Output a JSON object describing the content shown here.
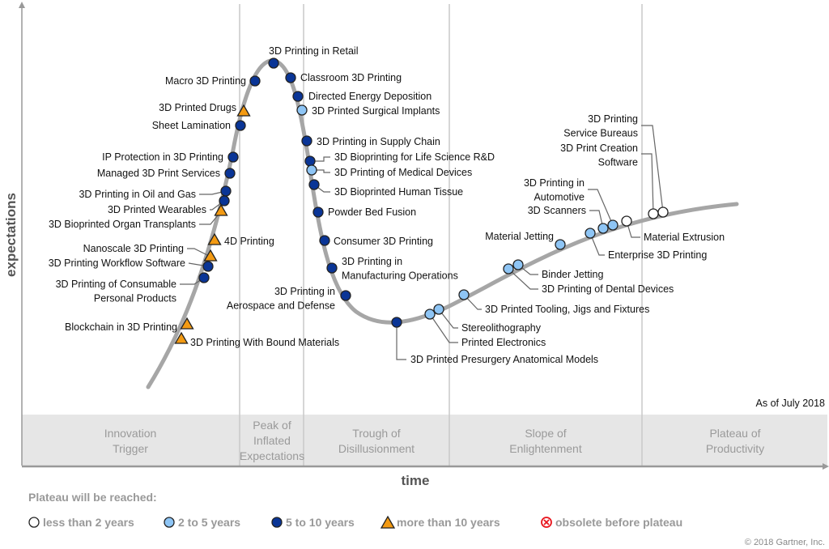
{
  "axes": {
    "y_label": "expectations",
    "x_label": "time"
  },
  "as_of": "As of July 2018",
  "phases": [
    {
      "lines": [
        "Innovation",
        "Trigger"
      ]
    },
    {
      "lines": [
        "Peak of",
        "Inflated",
        "Expectations"
      ]
    },
    {
      "lines": [
        "Trough of",
        "Disillusionment"
      ]
    },
    {
      "lines": [
        "Slope of",
        "Enlightenment"
      ]
    },
    {
      "lines": [
        "Plateau of",
        "Productivity"
      ]
    }
  ],
  "legend": {
    "title": "Plateau will be reached:",
    "items": [
      {
        "key": "lt2",
        "label": "less than 2 years",
        "icon": "white-circle-icon",
        "color": "#ffffff"
      },
      {
        "key": "2to5",
        "label": "2 to 5 years",
        "icon": "light-blue-circle-icon",
        "color": "#8ec5f5"
      },
      {
        "key": "5to10",
        "label": "5 to 10 years",
        "icon": "dark-blue-circle-icon",
        "color": "#0a3596"
      },
      {
        "key": "gt10",
        "label": "more than 10 years",
        "icon": "orange-triangle-icon",
        "color": "#f39a12"
      },
      {
        "key": "obsolete",
        "label": "obsolete before plateau",
        "icon": "red-crossed-circle-icon",
        "color": "#e8141c"
      }
    ]
  },
  "copyright": "© 2018 Gartner, Inc.",
  "technologies": [
    {
      "name": "3D Printing in Retail",
      "plateau": "5to10"
    },
    {
      "name": "Macro 3D Printing",
      "plateau": "5to10"
    },
    {
      "name": "Classroom 3D Printing",
      "plateau": "5to10"
    },
    {
      "name": "3D Printed Drugs",
      "plateau": "gt10"
    },
    {
      "name": "Directed Energy Deposition",
      "plateau": "5to10"
    },
    {
      "name": "3D Printed Surgical Implants",
      "plateau": "2to5"
    },
    {
      "name": "Sheet Lamination",
      "plateau": "5to10"
    },
    {
      "name": "3D Printing in Supply Chain",
      "plateau": "5to10"
    },
    {
      "name": "IP Protection in 3D Printing",
      "plateau": "5to10"
    },
    {
      "name": "3D Bioprinting for Life Science R&D",
      "plateau": "5to10"
    },
    {
      "name": "3D Printing of Medical Devices",
      "plateau": "2to5"
    },
    {
      "name": "Managed 3D Print Services",
      "plateau": "5to10"
    },
    {
      "name": "3D Bioprinted Human Tissue",
      "plateau": "5to10"
    },
    {
      "name": "3D Printing in Oil and Gas",
      "plateau": "5to10"
    },
    {
      "name": "3D Printed Wearables",
      "plateau": "5to10"
    },
    {
      "name": "3D Bioprinted Organ Transplants",
      "plateau": "gt10"
    },
    {
      "name": "Powder Bed Fusion",
      "plateau": "5to10"
    },
    {
      "name": "4D Printing",
      "plateau": "gt10"
    },
    {
      "name": "Consumer 3D Printing",
      "plateau": "5to10"
    },
    {
      "name": "Nanoscale 3D Printing",
      "plateau": "gt10"
    },
    {
      "name": "3D Printing Workflow Software",
      "plateau": "5to10"
    },
    {
      "name": "3D Printing in Manufacturing Operations",
      "lines": [
        "3D Printing in",
        "Manufacturing Operations"
      ],
      "plateau": "5to10"
    },
    {
      "name": "3D Printing of Consumable Personal Products",
      "lines": [
        "3D Printing of Consumable",
        "Personal Products"
      ],
      "plateau": "5to10"
    },
    {
      "name": "3D Printing in Aerospace and Defense",
      "lines": [
        "3D Printing in",
        "Aerospace and Defense"
      ],
      "plateau": "5to10"
    },
    {
      "name": "Blockchain in 3D Printing",
      "plateau": "gt10"
    },
    {
      "name": "3D Printing With Bound Materials",
      "plateau": "gt10"
    },
    {
      "name": "3D Printed Presurgery Anatomical Models",
      "plateau": "5to10"
    },
    {
      "name": "Stereolithography",
      "plateau": "2to5"
    },
    {
      "name": "Printed Electronics",
      "plateau": "2to5"
    },
    {
      "name": "3D Printed Tooling, Jigs and Fixtures",
      "plateau": "2to5"
    },
    {
      "name": "Binder Jetting",
      "plateau": "2to5"
    },
    {
      "name": "3D Printing of Dental Devices",
      "plateau": "2to5"
    },
    {
      "name": "Material Jetting",
      "plateau": "2to5"
    },
    {
      "name": "Enterprise 3D Printing",
      "plateau": "2to5"
    },
    {
      "name": "3D Scanners",
      "plateau": "2to5"
    },
    {
      "name": "3D Printing in Automotive",
      "lines": [
        "3D Printing in",
        "Automotive"
      ],
      "plateau": "2to5"
    },
    {
      "name": "Material Extrusion",
      "plateau": "lt2"
    },
    {
      "name": "3D Print Creation Software",
      "lines": [
        "3D Print Creation",
        "Software"
      ],
      "plateau": "lt2"
    },
    {
      "name": "3D Printing Service Bureaus",
      "lines": [
        "3D Printing",
        "Service Bureaus"
      ],
      "plateau": "lt2"
    }
  ]
}
